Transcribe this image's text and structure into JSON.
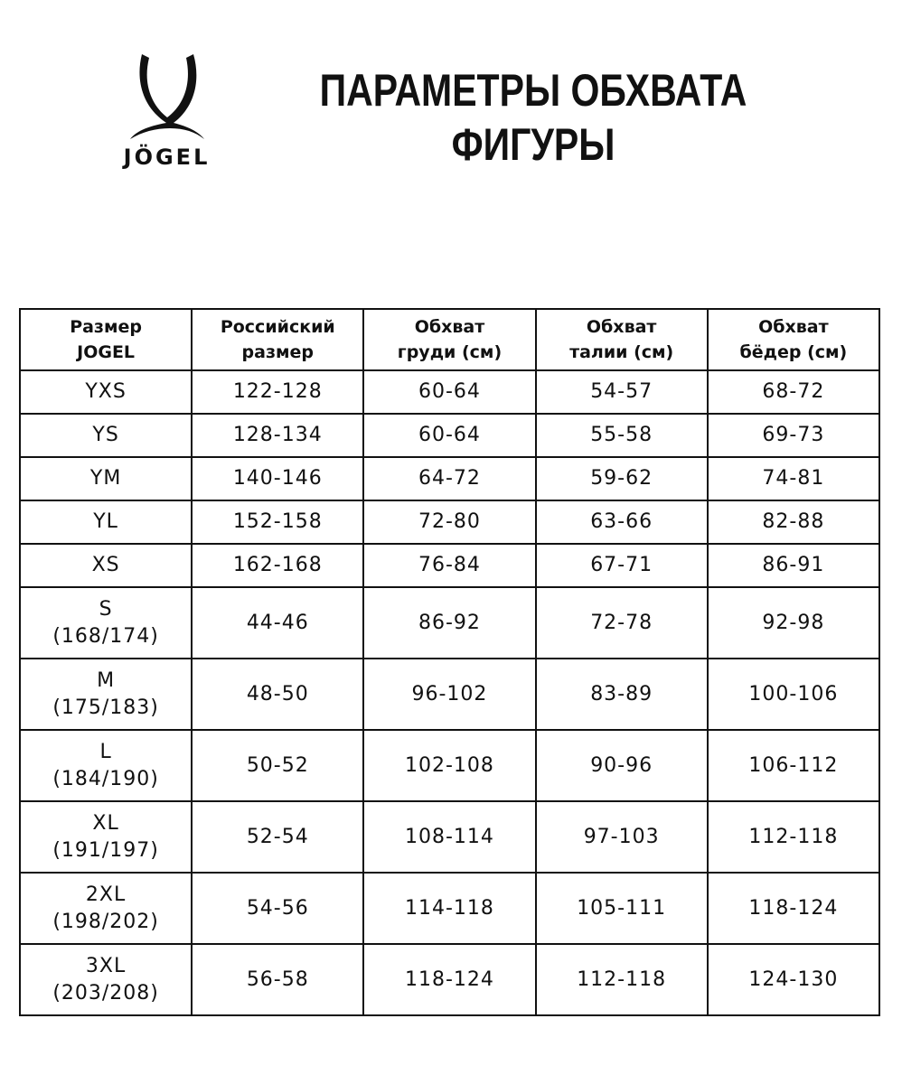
{
  "logo": {
    "text": "JÖGEL"
  },
  "title": {
    "line1": "ПАРАМЕТРЫ ОБХВАТА",
    "line2": "ФИГУРЫ"
  },
  "table": {
    "headers": [
      {
        "l1": "Размер",
        "l2": "JOGEL"
      },
      {
        "l1": "Российский",
        "l2": "размер"
      },
      {
        "l1": "Обхват",
        "l2": "груди (см)"
      },
      {
        "l1": "Обхват",
        "l2": "талии (см)"
      },
      {
        "l1": "Обхват",
        "l2": "бёдер (см)"
      }
    ],
    "rows": [
      {
        "size": "YXS",
        "sub": "",
        "ru": "122-128",
        "chest": "60-64",
        "waist": "54-57",
        "hips": "68-72"
      },
      {
        "size": "YS",
        "sub": "",
        "ru": "128-134",
        "chest": "60-64",
        "waist": "55-58",
        "hips": "69-73"
      },
      {
        "size": "YM",
        "sub": "",
        "ru": "140-146",
        "chest": "64-72",
        "waist": "59-62",
        "hips": "74-81"
      },
      {
        "size": "YL",
        "sub": "",
        "ru": "152-158",
        "chest": "72-80",
        "waist": "63-66",
        "hips": "82-88"
      },
      {
        "size": "XS",
        "sub": "",
        "ru": "162-168",
        "chest": "76-84",
        "waist": "67-71",
        "hips": "86-91"
      },
      {
        "size": "S",
        "sub": "(168/174)",
        "ru": "44-46",
        "chest": "86-92",
        "waist": "72-78",
        "hips": "92-98"
      },
      {
        "size": "M",
        "sub": "(175/183)",
        "ru": "48-50",
        "chest": "96-102",
        "waist": "83-89",
        "hips": "100-106"
      },
      {
        "size": "L",
        "sub": "(184/190)",
        "ru": "50-52",
        "chest": "102-108",
        "waist": "90-96",
        "hips": "106-112"
      },
      {
        "size": "XL",
        "sub": "(191/197)",
        "ru": "52-54",
        "chest": "108-114",
        "waist": "97-103",
        "hips": "112-118"
      },
      {
        "size": "2XL",
        "sub": "(198/202)",
        "ru": "54-56",
        "chest": "114-118",
        "waist": "105-111",
        "hips": "118-124"
      },
      {
        "size": "3XL",
        "sub": "(203/208)",
        "ru": "56-58",
        "chest": "118-124",
        "waist": "112-118",
        "hips": "124-130"
      }
    ]
  }
}
